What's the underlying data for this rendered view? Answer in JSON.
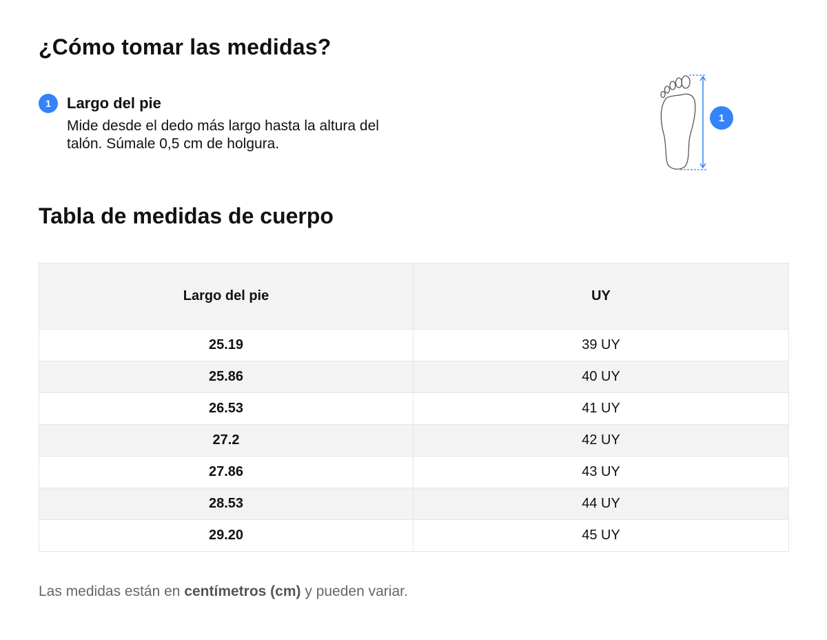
{
  "how_to": {
    "title": "¿Cómo tomar las medidas?",
    "step": {
      "number": "1",
      "title": "Largo del pie",
      "description": "Mide desde el dedo más largo hasta la altura del talón. Súmale 0,5 cm de holgura."
    },
    "illustration": {
      "icon": "foot-outline-icon",
      "badge": "1",
      "accent_color": "#3483fa"
    }
  },
  "table": {
    "title": "Tabla de medidas de cuerpo",
    "headers": [
      "Largo del pie",
      "UY"
    ],
    "rows": [
      [
        "25.19",
        "39 UY"
      ],
      [
        "25.86",
        "40 UY"
      ],
      [
        "26.53",
        "41 UY"
      ],
      [
        "27.2",
        "42 UY"
      ],
      [
        "27.86",
        "43 UY"
      ],
      [
        "28.53",
        "44 UY"
      ],
      [
        "29.20",
        "45 UY"
      ]
    ]
  },
  "note": {
    "prefix": "Las medidas están en ",
    "emphasis": "centímetros (cm)",
    "suffix": " y pueden variar."
  }
}
